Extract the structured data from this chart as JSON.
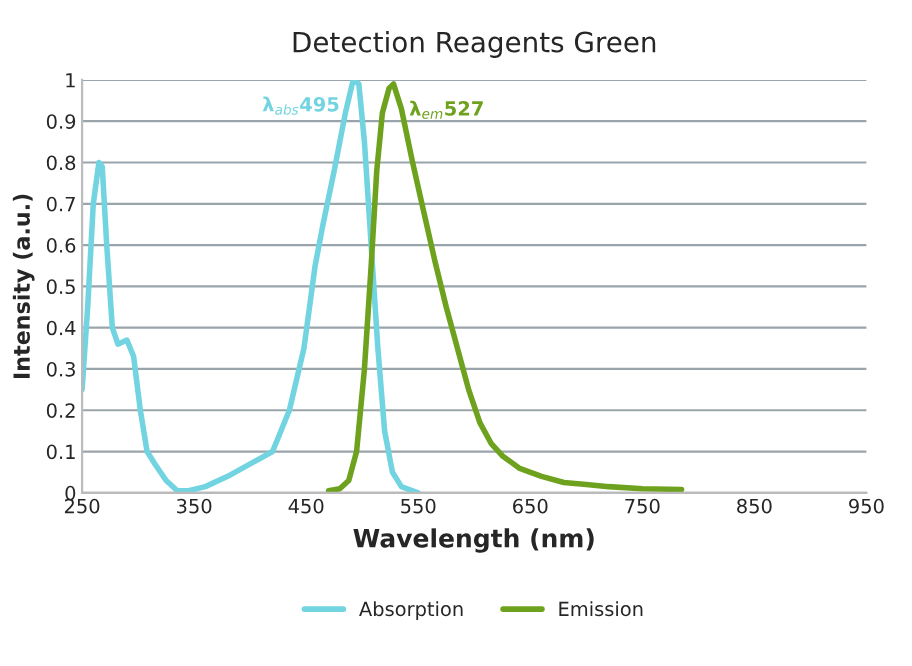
{
  "chart_data": {
    "type": "line",
    "title": "Detection Reagents Green",
    "xlabel": "Wavelength (nm)",
    "ylabel": "Intensity (a.u.)",
    "xlim": [
      250,
      950
    ],
    "xticks": [
      250,
      350,
      450,
      550,
      650,
      750,
      850,
      950
    ],
    "ylim": [
      0,
      1
    ],
    "yticks": [
      0,
      0.1,
      0.2,
      0.3,
      0.4,
      0.5,
      0.6,
      0.7,
      0.8,
      0.9,
      1
    ],
    "grid": "y",
    "legend": "bottom",
    "marker": "none",
    "line_style": "solid",
    "series": [
      {
        "name": "Absorption",
        "color": "#72d4e0",
        "x": [
          250,
          255,
          260,
          265,
          268,
          272,
          277,
          282,
          290,
          296,
          302,
          308,
          315,
          325,
          335,
          345,
          360,
          380,
          400,
          420,
          435,
          448,
          458,
          465,
          475,
          485,
          492,
          497,
          502,
          508,
          514,
          520,
          527,
          535,
          545,
          550
        ],
        "values": [
          0.25,
          0.45,
          0.7,
          0.8,
          0.79,
          0.6,
          0.4,
          0.36,
          0.37,
          0.33,
          0.2,
          0.1,
          0.07,
          0.03,
          0.005,
          0.005,
          0.015,
          0.04,
          0.07,
          0.1,
          0.2,
          0.35,
          0.55,
          0.65,
          0.78,
          0.92,
          1.0,
          0.99,
          0.85,
          0.6,
          0.35,
          0.15,
          0.05,
          0.015,
          0.005,
          0.0
        ]
      },
      {
        "name": "Emission",
        "color": "#6ea21e",
        "x": [
          470,
          480,
          488,
          495,
          502,
          508,
          513,
          518,
          524,
          528,
          535,
          545,
          555,
          565,
          575,
          585,
          595,
          605,
          615,
          625,
          640,
          660,
          680,
          700,
          720,
          750,
          785
        ],
        "values": [
          0.005,
          0.01,
          0.03,
          0.1,
          0.3,
          0.55,
          0.78,
          0.92,
          0.98,
          0.99,
          0.93,
          0.8,
          0.68,
          0.56,
          0.45,
          0.35,
          0.25,
          0.17,
          0.12,
          0.09,
          0.06,
          0.04,
          0.025,
          0.02,
          0.015,
          0.01,
          0.008
        ]
      }
    ],
    "annotations": [
      {
        "text": "λ$_{abs}$495",
        "x": 495,
        "y": 1.0
      },
      {
        "text": "λ$_{em}$527",
        "x": 527,
        "y": 0.99
      }
    ]
  }
}
